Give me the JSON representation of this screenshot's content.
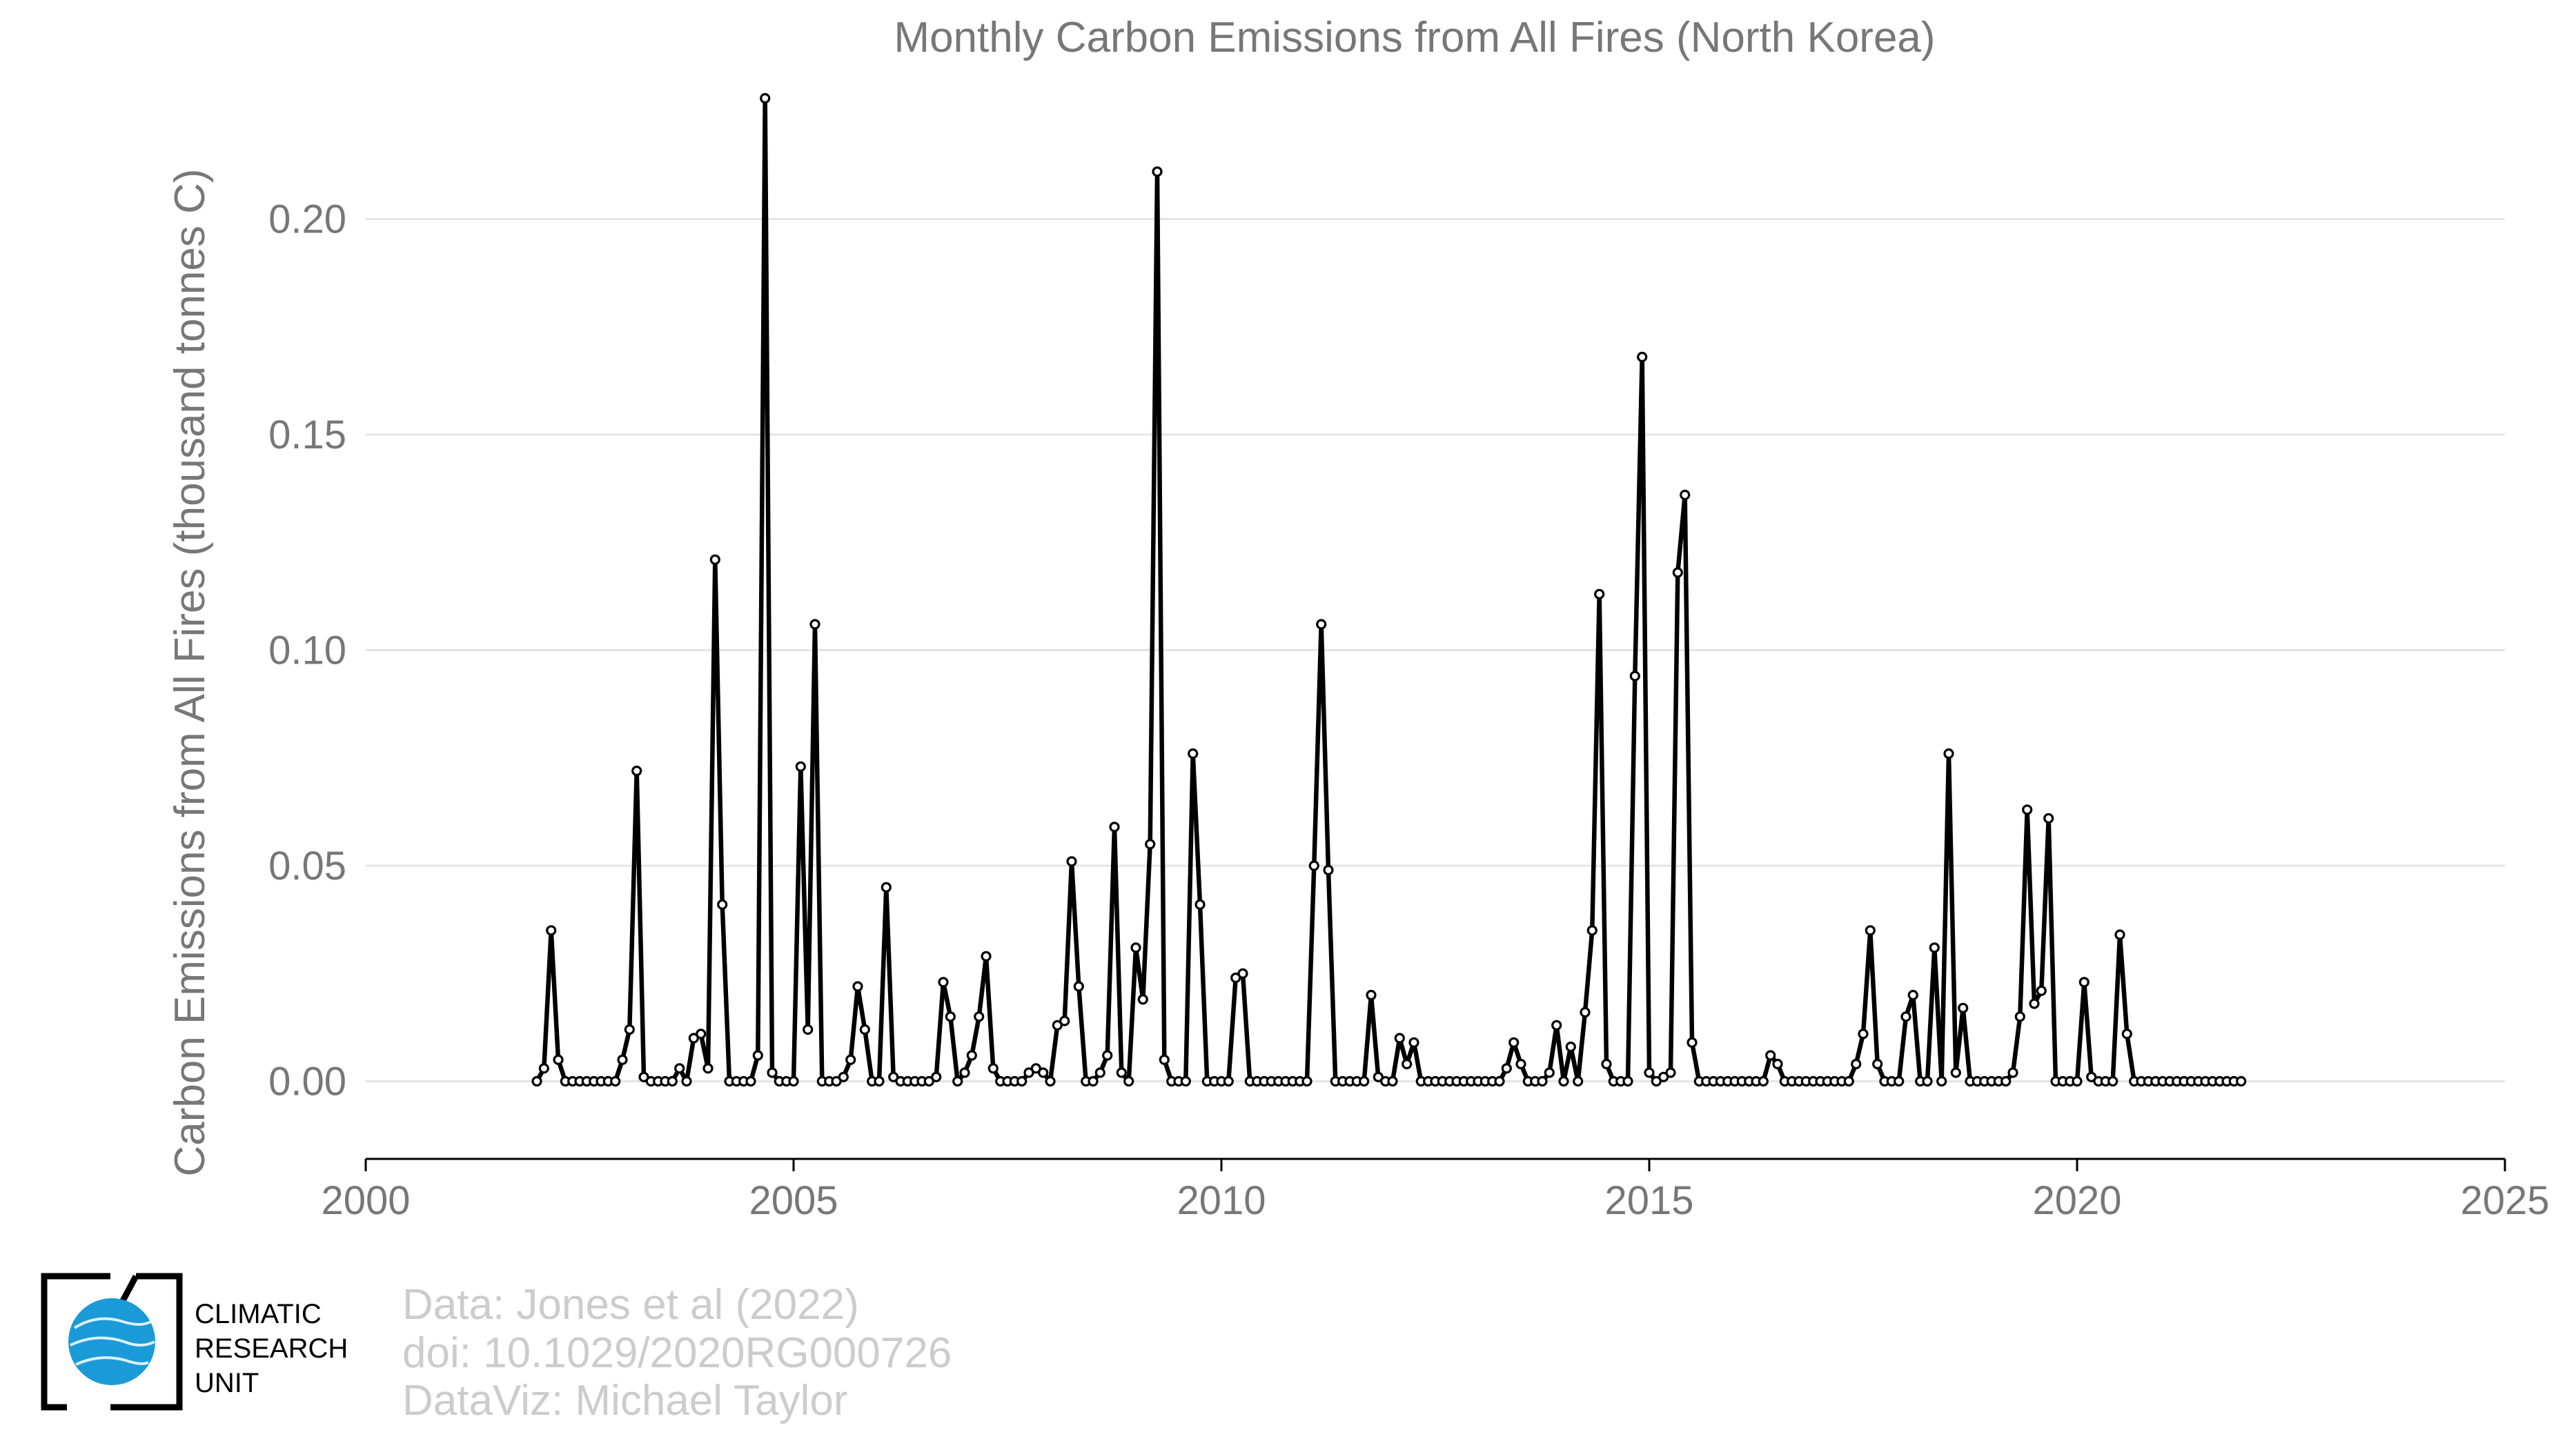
{
  "chart_data": {
    "type": "line",
    "title": "Monthly Carbon Emissions from All Fires (North Korea)",
    "xlabel": "",
    "ylabel": "Carbon Emissions from All Fires (thousand tonnes C)",
    "xlim": [
      2000,
      2025
    ],
    "ylim": [
      -0.018,
      0.23
    ],
    "x_ticks": [
      "2000",
      "2005",
      "2010",
      "2015",
      "2020",
      "2025"
    ],
    "y_ticks": [
      "0.00",
      "0.05",
      "0.10",
      "0.15",
      "0.20"
    ],
    "grid": "horizontal",
    "legend": "none",
    "series_color": "#000000",
    "x_start": "2002-01",
    "x_step": "monthly",
    "values": [
      0.0,
      0.003,
      0.035,
      0.005,
      0.0,
      0.0,
      0.0,
      0.0,
      0.0,
      0.0,
      0.0,
      0.0,
      0.005,
      0.012,
      0.072,
      0.001,
      0.0,
      0.0,
      0.0,
      0.0,
      0.003,
      0.0,
      0.01,
      0.011,
      0.003,
      0.121,
      0.041,
      0.0,
      0.0,
      0.0,
      0.0,
      0.006,
      0.228,
      0.002,
      0.0,
      0.0,
      0.0,
      0.073,
      0.012,
      0.106,
      0.0,
      0.0,
      0.0,
      0.001,
      0.005,
      0.022,
      0.012,
      0.0,
      0.0,
      0.045,
      0.001,
      0.0,
      0.0,
      0.0,
      0.0,
      0.0,
      0.001,
      0.023,
      0.015,
      0.0,
      0.002,
      0.006,
      0.015,
      0.029,
      0.003,
      0.0,
      0.0,
      0.0,
      0.0,
      0.002,
      0.003,
      0.002,
      0.0,
      0.013,
      0.014,
      0.051,
      0.022,
      0.0,
      0.0,
      0.002,
      0.006,
      0.059,
      0.002,
      0.0,
      0.031,
      0.019,
      0.055,
      0.211,
      0.005,
      0.0,
      0.0,
      0.0,
      0.076,
      0.041,
      0.0,
      0.0,
      0.0,
      0.0,
      0.024,
      0.025,
      0.0,
      0.0,
      0.0,
      0.0,
      0.0,
      0.0,
      0.0,
      0.0,
      0.0,
      0.05,
      0.106,
      0.049,
      0.0,
      0.0,
      0.0,
      0.0,
      0.0,
      0.02,
      0.001,
      0.0,
      0.0,
      0.01,
      0.004,
      0.009,
      0.0,
      0.0,
      0.0,
      0.0,
      0.0,
      0.0,
      0.0,
      0.0,
      0.0,
      0.0,
      0.0,
      0.0,
      0.003,
      0.009,
      0.004,
      0.0,
      0.0,
      0.0,
      0.002,
      0.013,
      0.0,
      0.008,
      0.0,
      0.016,
      0.035,
      0.113,
      0.004,
      0.0,
      0.0,
      0.0,
      0.094,
      0.168,
      0.002,
      0.0,
      0.001,
      0.002,
      0.118,
      0.136,
      0.009,
      0.0,
      0.0,
      0.0,
      0.0,
      0.0,
      0.0,
      0.0,
      0.0,
      0.0,
      0.0,
      0.006,
      0.004,
      0.0,
      0.0,
      0.0,
      0.0,
      0.0,
      0.0,
      0.0,
      0.0,
      0.0,
      0.0,
      0.004,
      0.011,
      0.035,
      0.004,
      0.0,
      0.0,
      0.0,
      0.015,
      0.02,
      0.0,
      0.0,
      0.031,
      0.0,
      0.076,
      0.002,
      0.017,
      0.0,
      0.0,
      0.0,
      0.0,
      0.0,
      0.0,
      0.002,
      0.015,
      0.063,
      0.018,
      0.021,
      0.061,
      0.0,
      0.0,
      0.0,
      0.0,
      0.023,
      0.001,
      0.0,
      0.0,
      0.0,
      0.034,
      0.011,
      0.0,
      0.0,
      0.0,
      0.0,
      0.0,
      0.0,
      0.0,
      0.0,
      0.0,
      0.0,
      0.0,
      0.0,
      0.0,
      0.0,
      0.0,
      0.0
    ]
  },
  "credits": {
    "line1": "Data: Jones et al (2022)",
    "line2": "doi: 10.1029/2020RG000726",
    "line3": "DataViz: Michael Taylor"
  },
  "logo": {
    "line1": "CLIMATIC",
    "line2": "RESEARCH",
    "line3": "UNIT",
    "globe_color": "#1a9bd7"
  }
}
